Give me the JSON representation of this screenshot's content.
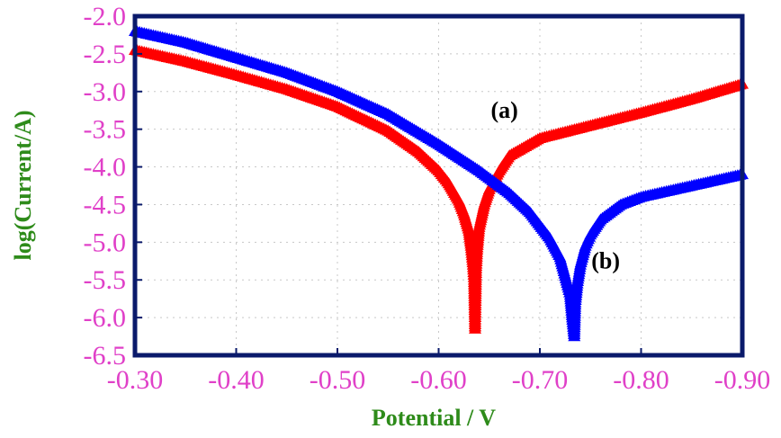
{
  "chart_data": {
    "type": "scatter",
    "xlabel": "Potential / V",
    "ylabel": "log(Current/A)",
    "x_ticks": [
      "-0.30",
      "-0.40",
      "-0.50",
      "-0.60",
      "-0.70",
      "-0.80",
      "-0.90"
    ],
    "y_ticks": [
      "-2.0",
      "-2.5",
      "-3.0",
      "-3.5",
      "-4.0",
      "-4.5",
      "-5.0",
      "-5.5",
      "-6.0",
      "-6.5"
    ],
    "xlim": [
      -0.3,
      -0.9
    ],
    "ylim": [
      -6.5,
      -2.0
    ],
    "x_axis_reversed": true,
    "grid": true,
    "marker": "triangle",
    "annotations": [
      {
        "text": "(a)",
        "x": -0.665,
        "y": -3.35
      },
      {
        "text": "(b)",
        "x": -0.765,
        "y": -5.35
      }
    ],
    "series": [
      {
        "label": "(a)",
        "color": "#ff0000",
        "x": [
          -0.3,
          -0.35,
          -0.4,
          -0.45,
          -0.5,
          -0.55,
          -0.58,
          -0.6,
          -0.61,
          -0.62,
          -0.625,
          -0.63,
          -0.632,
          -0.634,
          -0.635,
          -0.636,
          -0.637,
          -0.638,
          -0.64,
          -0.645,
          -0.65,
          -0.66,
          -0.67,
          -0.7,
          -0.75,
          -0.8,
          -0.85,
          -0.9
        ],
        "y": [
          -2.45,
          -2.6,
          -2.78,
          -2.97,
          -3.2,
          -3.52,
          -3.8,
          -4.05,
          -4.22,
          -4.45,
          -4.62,
          -4.85,
          -5.05,
          -5.3,
          -5.5,
          -6.15,
          -5.35,
          -5.1,
          -4.8,
          -4.5,
          -4.3,
          -4.05,
          -3.85,
          -3.62,
          -3.45,
          -3.28,
          -3.1,
          -2.9
        ]
      },
      {
        "label": "(b)",
        "color": "#0000ff",
        "x": [
          -0.3,
          -0.35,
          -0.4,
          -0.45,
          -0.5,
          -0.55,
          -0.6,
          -0.64,
          -0.67,
          -0.69,
          -0.71,
          -0.72,
          -0.725,
          -0.73,
          -0.732,
          -0.734,
          -0.735,
          -0.737,
          -0.74,
          -0.745,
          -0.75,
          -0.76,
          -0.78,
          -0.8,
          -0.85,
          -0.9
        ],
        "y": [
          -2.2,
          -2.35,
          -2.55,
          -2.75,
          -3.0,
          -3.3,
          -3.7,
          -4.05,
          -4.35,
          -4.6,
          -4.95,
          -5.2,
          -5.45,
          -5.7,
          -6.0,
          -6.25,
          -5.8,
          -5.55,
          -5.3,
          -5.05,
          -4.9,
          -4.7,
          -4.5,
          -4.4,
          -4.25,
          -4.1
        ]
      }
    ]
  },
  "colors": {
    "tick_labels": "#e040c8",
    "axis_titles": "#2e8b1a",
    "frame": "#0a1a6b"
  }
}
